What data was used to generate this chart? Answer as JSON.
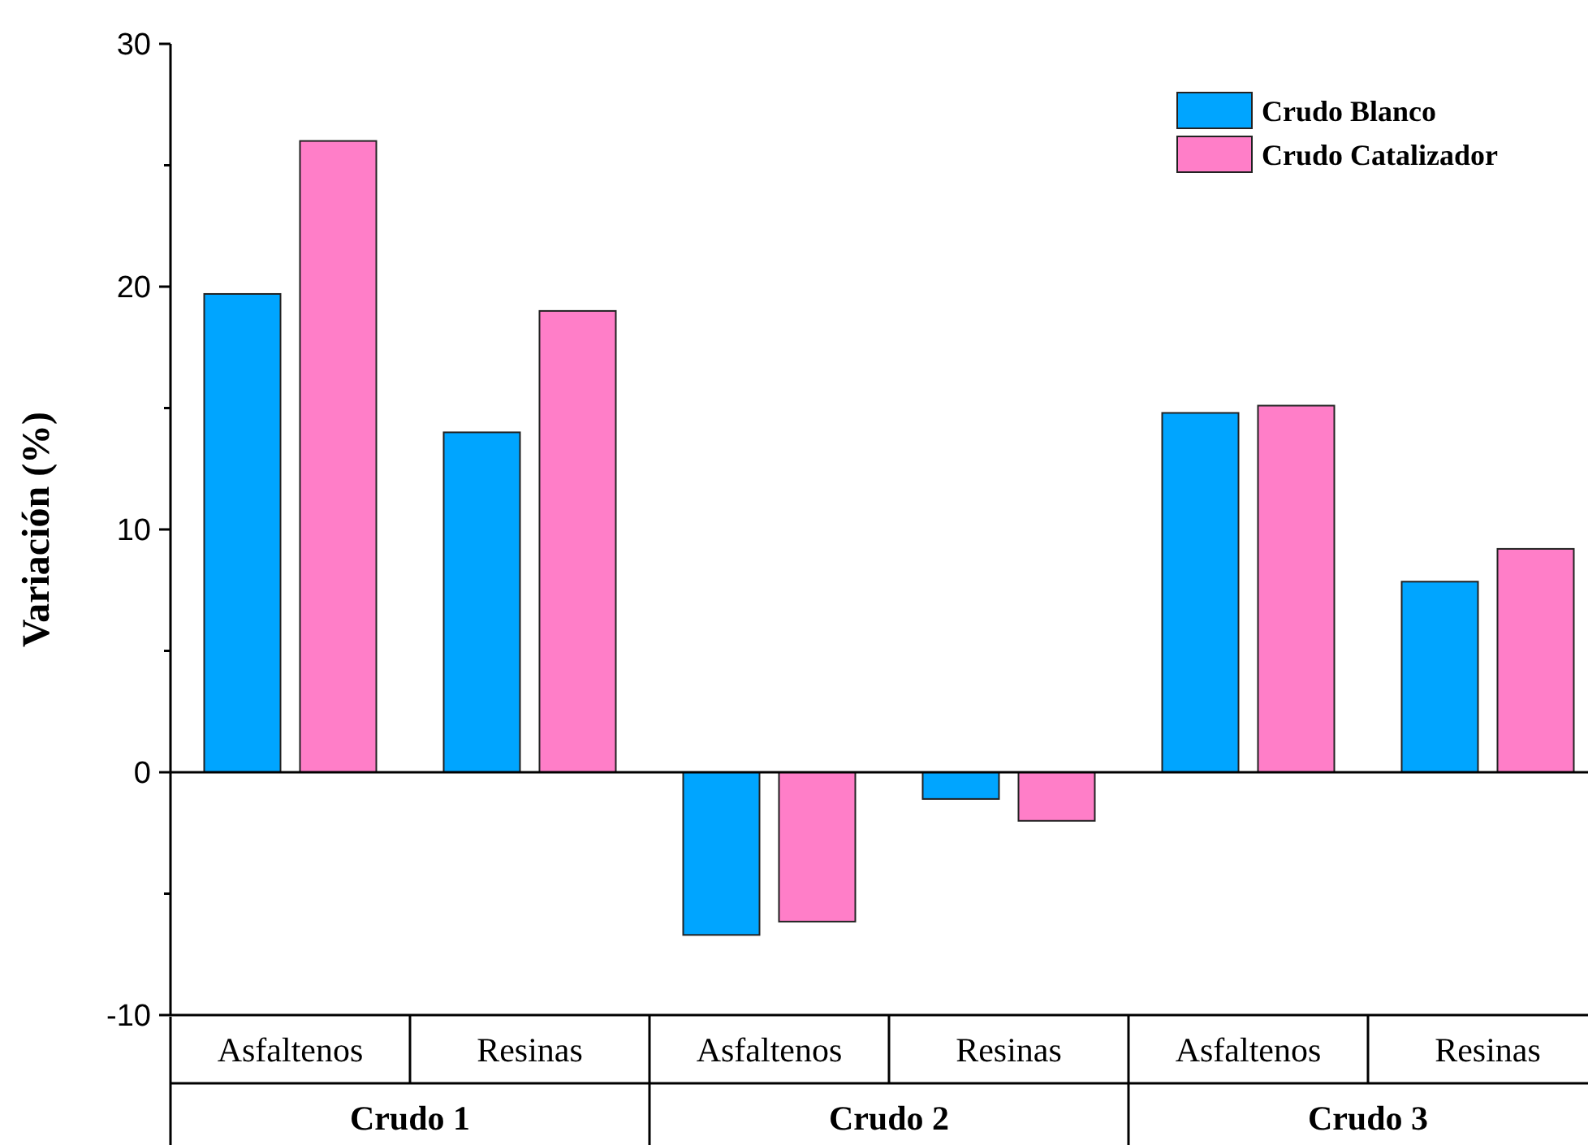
{
  "chart_data": {
    "type": "bar",
    "ylabel": "Variación (%)",
    "categories": [
      "Asfaltenos",
      "Resinas",
      "Asfaltenos",
      "Resinas",
      "Asfaltenos",
      "Resinas"
    ],
    "series": [
      {
        "name": "Crudo Blanco",
        "color": "#00a5ff",
        "values": [
          19.7,
          14.0,
          -6.7,
          -1.1,
          14.8,
          7.85
        ]
      },
      {
        "name": "Crudo Catalizador",
        "color": "#ff7ec8",
        "values": [
          26.0,
          19.0,
          -6.15,
          -2.0,
          15.1,
          9.2
        ]
      }
    ],
    "ylim": [
      -10,
      30
    ],
    "yticks": [
      -10,
      {
        "value": -5,
        "label": null
      },
      0,
      {
        "value": 5,
        "label": null
      },
      10,
      {
        "value": 15,
        "label": null
      },
      20,
      {
        "value": 25,
        "label": null
      },
      30
    ],
    "ref_lines": [
      {
        "axis": "y",
        "value": 0,
        "color": "#000000"
      }
    ],
    "annotations": [
      "Crudo 1",
      "Crudo 2",
      "Crudo 3"
    ],
    "legend": "top right",
    "grid": false
  }
}
